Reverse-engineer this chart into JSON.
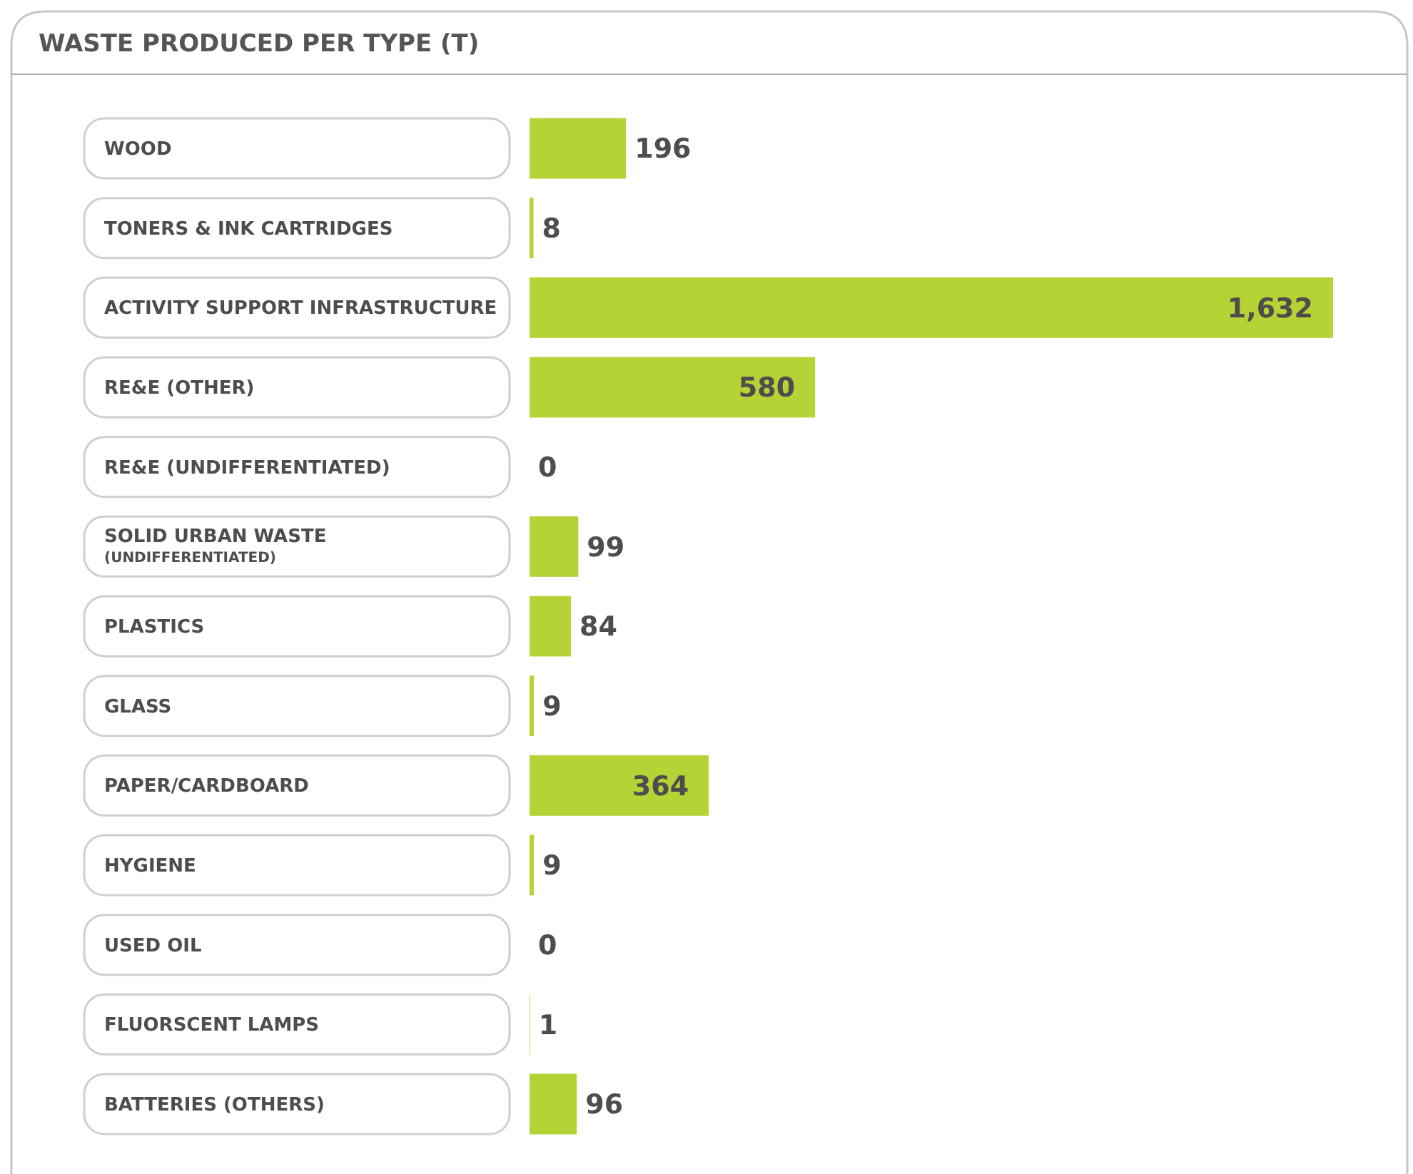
{
  "chart_data": {
    "type": "bar",
    "orientation": "horizontal",
    "title": "WASTE PRODUCED PER TYPE (T)",
    "categories": [
      "WOOD",
      "TONERS & INK CARTRIDGES",
      "ACTIVITY SUPPORT INFRASTRUCTURE",
      "RE&E (OTHER)",
      "RE&E (UNDIFFERENTIATED)",
      "SOLID URBAN WASTE\n(UNDIFFERENTIATED)",
      "PLASTICS",
      "GLASS",
      "PAPER/CARDBOARD",
      "HYGIENE",
      "USED OIL",
      "FLUORSCENT LAMPS",
      "BATTERIES (OTHERS)"
    ],
    "values": [
      196,
      8,
      1632,
      580,
      0,
      99,
      84,
      9,
      364,
      9,
      0,
      1,
      96
    ],
    "color": "#b5d334",
    "value_labels": [
      "196",
      "8",
      "1,632",
      "580",
      "0",
      "99",
      "84",
      "9",
      "364",
      "9",
      "0",
      "1",
      "96"
    ]
  }
}
